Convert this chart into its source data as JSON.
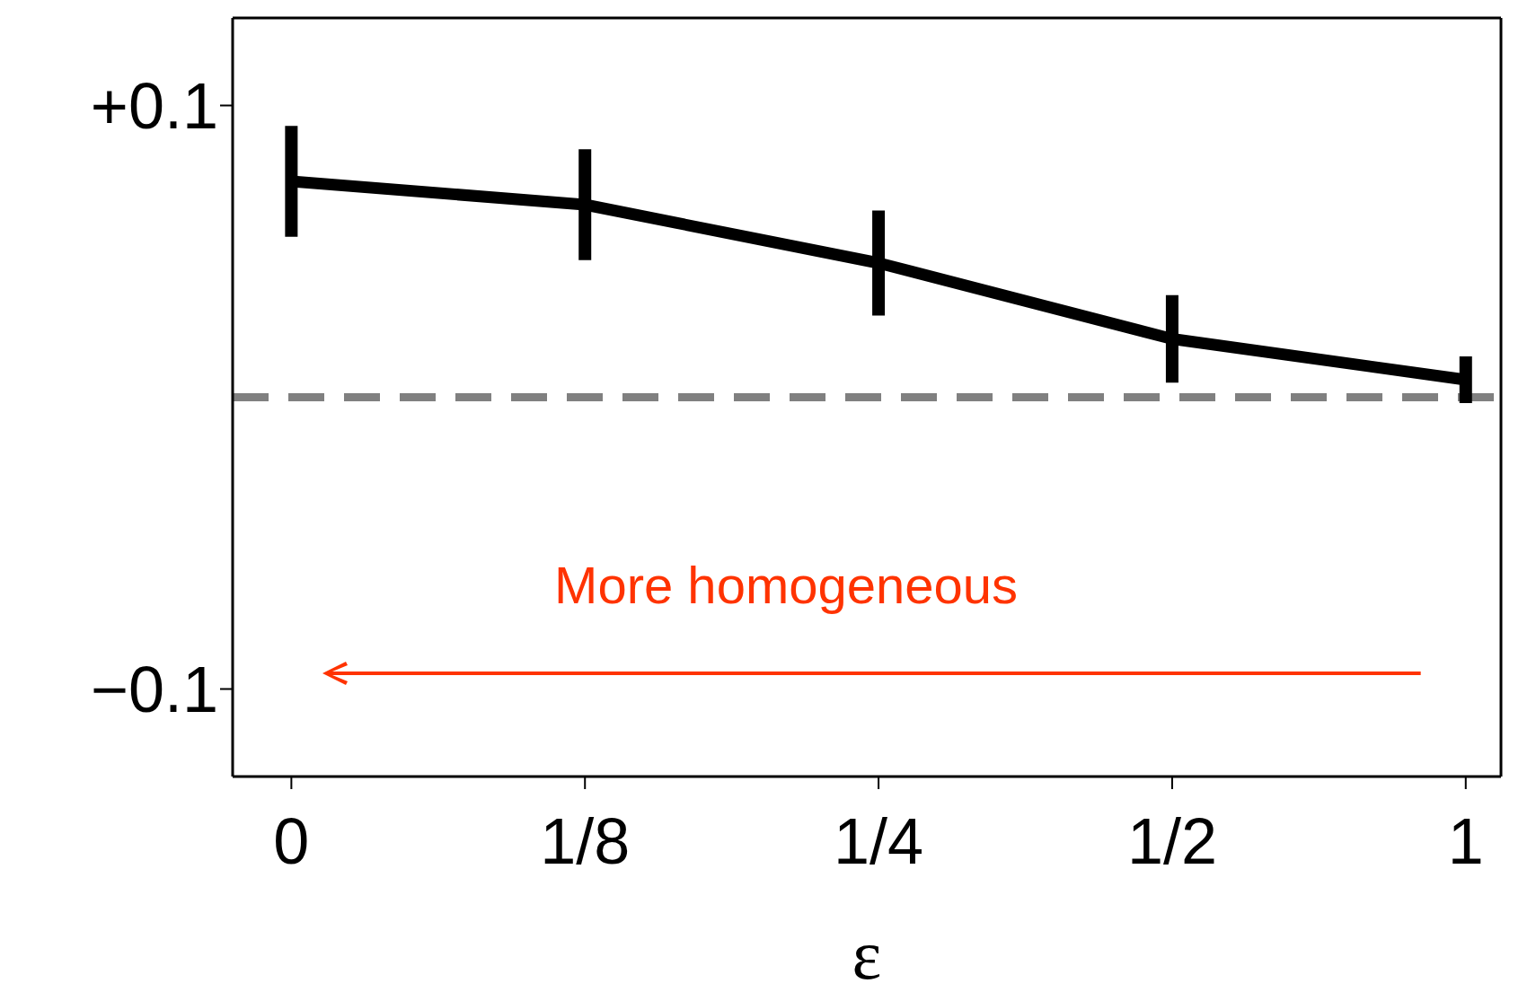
{
  "chart_data": {
    "type": "line",
    "xlabel": "ε",
    "categories": [
      "0",
      "1/8",
      "1/4",
      "1/2",
      "1"
    ],
    "series": [
      {
        "color": "#000000",
        "values": [
          0.074,
          0.066,
          0.046,
          0.02,
          0.006
        ],
        "errors": [
          0.019,
          0.019,
          0.018,
          0.015,
          0.008
        ]
      }
    ],
    "ylim": [
      -0.13,
      0.13
    ],
    "yticks": [
      {
        "value": 0.1,
        "label": "+0.1"
      },
      {
        "value": -0.1,
        "label": "−0.1"
      }
    ],
    "ref_lines": [
      {
        "axis": "y",
        "value": 0,
        "color": "#808080",
        "line_style": "dashed"
      }
    ],
    "annotations": [
      "More homogeneous"
    ],
    "grid": false,
    "legend": false,
    "marker": "none",
    "line_style": "solid"
  }
}
